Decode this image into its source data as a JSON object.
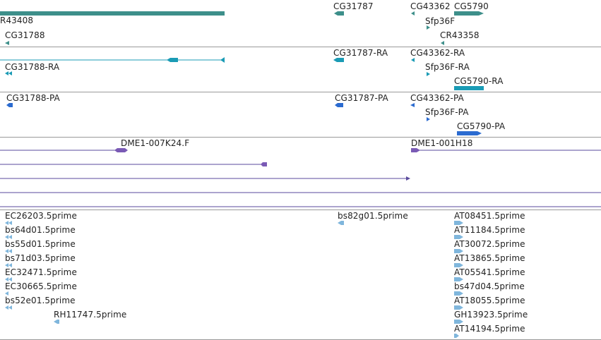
{
  "colors": {
    "gene": "#3d8f8a",
    "transcript": "#1a9bb5",
    "protein": "#2b6bd0",
    "clone": "#5a4a9c",
    "est": "#7fb6dc",
    "separator": "#9a9a9a",
    "text": "#222222"
  },
  "tracks": [
    {
      "key": "genes",
      "top": 0,
      "height": 66,
      "features": [
        {
          "label": "R43408",
          "kind": "bar"
        },
        {
          "label": "CG31788",
          "kind": "left"
        },
        {
          "label": "CG31787",
          "kind": "left"
        },
        {
          "label": "CG43362",
          "kind": "left"
        },
        {
          "label": "CG5790",
          "kind": "right"
        },
        {
          "label": "Sfp36F",
          "kind": "right"
        },
        {
          "label": "CR43358",
          "kind": "left"
        }
      ]
    },
    {
      "key": "transcripts",
      "features": [
        {
          "label": "",
          "kind": "line"
        },
        {
          "label": "CG31788-RA",
          "kind": "left"
        },
        {
          "label": "CG31787-RA",
          "kind": "left"
        },
        {
          "label": "CG43362-RA",
          "kind": "left"
        },
        {
          "label": "Sfp36F-RA",
          "kind": "right"
        },
        {
          "label": "CG5790-RA",
          "kind": "bar"
        }
      ]
    },
    {
      "key": "proteins",
      "features": [
        {
          "label": "CG31788-PA",
          "kind": "left"
        },
        {
          "label": "CG31787-PA",
          "kind": "left"
        },
        {
          "label": "CG43362-PA",
          "kind": "left"
        },
        {
          "label": "Sfp36F-PA",
          "kind": "right"
        },
        {
          "label": "CG5790-PA",
          "kind": "right"
        }
      ]
    },
    {
      "key": "clones",
      "features": [
        {
          "label": "DME1-007K24.F",
          "kind": "line"
        },
        {
          "label": "DME1-001H18",
          "kind": "line"
        },
        {
          "label": "",
          "kind": "line"
        },
        {
          "label": "",
          "kind": "line"
        },
        {
          "label": "",
          "kind": "line"
        },
        {
          "label": "",
          "kind": "line"
        }
      ]
    },
    {
      "key": "ests",
      "features": [
        {
          "label": "EC26203.5prime"
        },
        {
          "label": "bs64d01.5prime"
        },
        {
          "label": "bs55d01.5prime"
        },
        {
          "label": "bs71d03.5prime"
        },
        {
          "label": "EC32471.5prime"
        },
        {
          "label": "EC30665.5prime"
        },
        {
          "label": "bs52e01.5prime"
        },
        {
          "label": "RH11747.5prime"
        },
        {
          "label": "bs82g01.5prime"
        },
        {
          "label": "AT08451.5prime"
        },
        {
          "label": "AT11184.5prime"
        },
        {
          "label": "AT30072.5prime"
        },
        {
          "label": "AT13865.5prime"
        },
        {
          "label": "AT05541.5prime"
        },
        {
          "label": "bs47d04.5prime"
        },
        {
          "label": "AT18055.5prime"
        },
        {
          "label": "GH13923.5prime"
        },
        {
          "label": "AT14194.5prime"
        }
      ]
    }
  ]
}
